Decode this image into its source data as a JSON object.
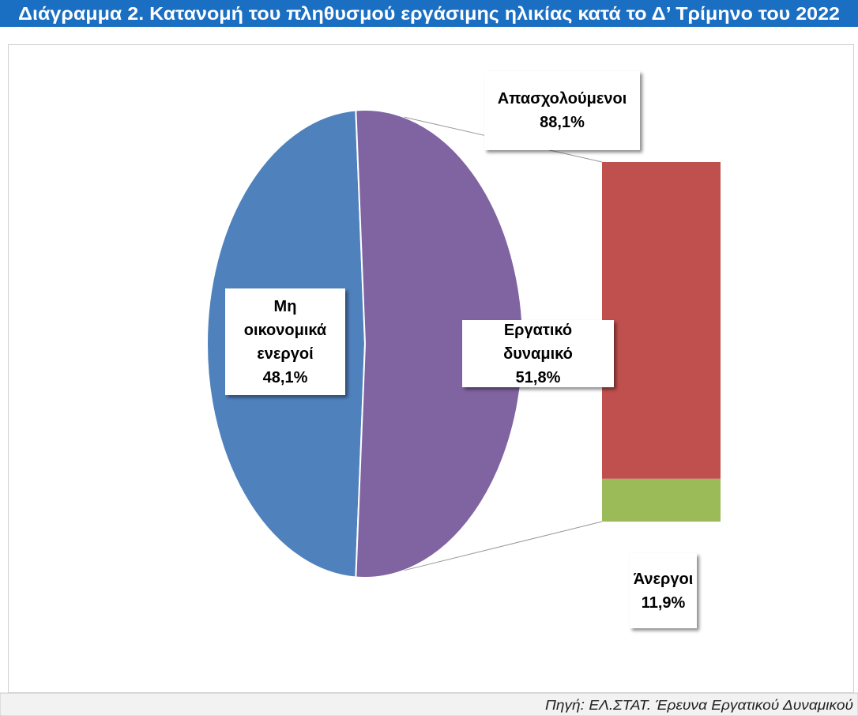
{
  "chart_data": {
    "type": "pie",
    "title": "Διάγραμμα 2. Κατανομή του πληθυσμού εργάσιμης ηλικίας κατά το Δ’ Τρίμηνο του 2022",
    "source": "Πηγή: ΕΛ.ΣΤΑΤ. Έρευνα Εργατικού Δυναμικού",
    "categories": [
      "Μη οικονομικά ενεργοί",
      "Εργατικό δυναμικό"
    ],
    "values": [
      48.1,
      51.8
    ],
    "value_labels": [
      "48,1%",
      "51,8%"
    ],
    "colors": [
      "#4f81bd",
      "#8064a2"
    ],
    "breakdown": {
      "type": "bar",
      "categories": [
        "Απασχολούμενοι",
        "Άνεργοι"
      ],
      "values": [
        88.1,
        11.9
      ],
      "value_labels": [
        "88,1%",
        "11,9%"
      ],
      "colors": [
        "#c0504d",
        "#9bbb59"
      ]
    }
  }
}
